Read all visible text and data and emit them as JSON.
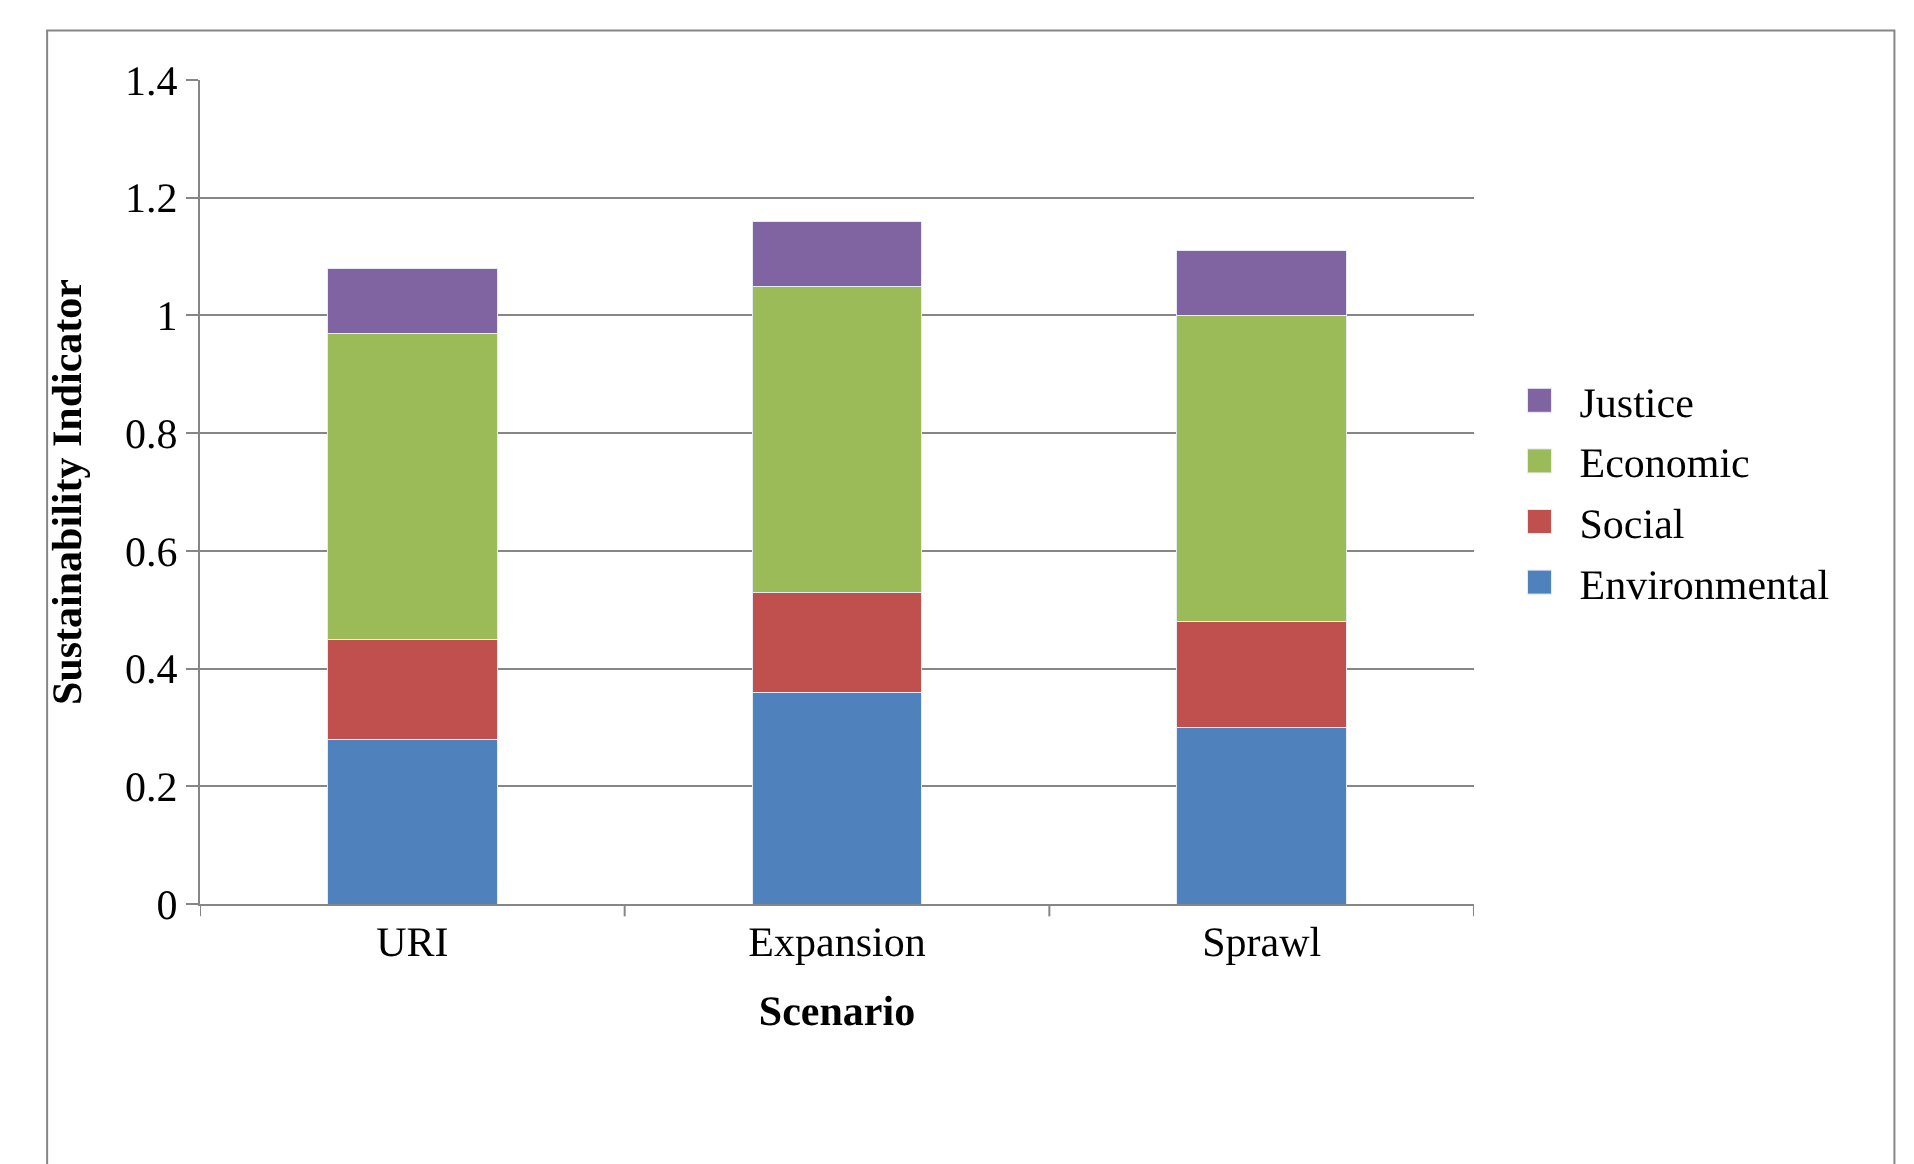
{
  "chart_data": {
    "type": "bar",
    "stacked": true,
    "xlabel": "Scenario",
    "ylabel": "Sustainability Indicator",
    "categories": [
      "URI",
      "Expansion",
      "Sprawl"
    ],
    "series": [
      {
        "name": "Environmental",
        "color": "#4f81bd",
        "values": [
          0.28,
          0.36,
          0.3
        ]
      },
      {
        "name": "Social",
        "color": "#c0504d",
        "values": [
          0.17,
          0.17,
          0.18
        ]
      },
      {
        "name": "Economic",
        "color": "#9bbb59",
        "values": [
          0.52,
          0.52,
          0.52
        ]
      },
      {
        "name": "Justice",
        "color": "#8064a2",
        "values": [
          0.11,
          0.11,
          0.11
        ]
      }
    ],
    "ylim": [
      0,
      1.4
    ],
    "yticks": [
      0,
      0.2,
      0.4,
      0.6,
      0.8,
      1,
      1.2,
      1.4
    ],
    "grid": "y",
    "legend": "right"
  }
}
